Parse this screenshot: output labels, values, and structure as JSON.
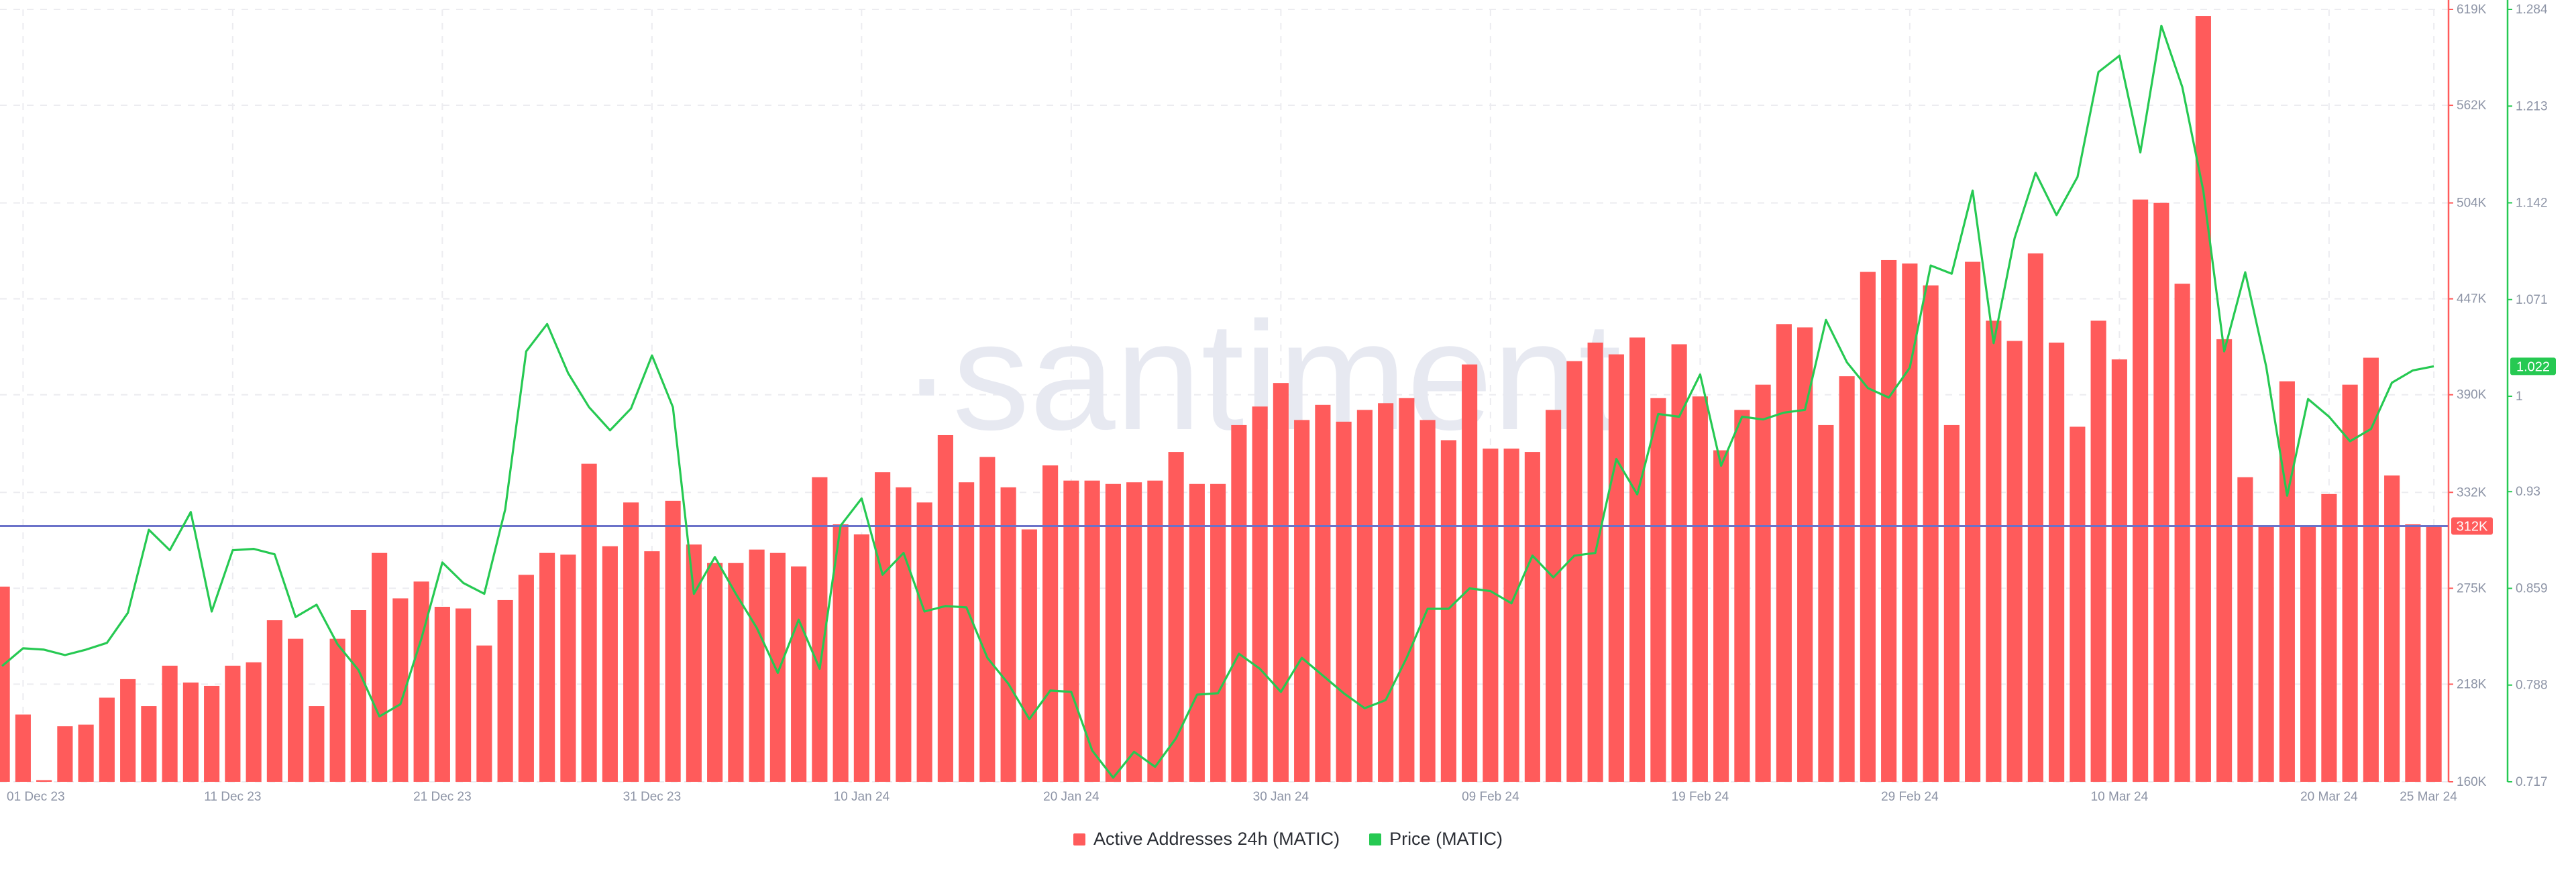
{
  "chart_data": {
    "type": "bar+line",
    "watermark": "·santiment",
    "x_dates": [
      "2023-11-30",
      "2023-12-01",
      "2023-12-02",
      "2023-12-03",
      "2023-12-04",
      "2023-12-05",
      "2023-12-06",
      "2023-12-07",
      "2023-12-08",
      "2023-12-09",
      "2023-12-10",
      "2023-12-11",
      "2023-12-12",
      "2023-12-13",
      "2023-12-14",
      "2023-12-15",
      "2023-12-16",
      "2023-12-17",
      "2023-12-18",
      "2023-12-19",
      "2023-12-20",
      "2023-12-21",
      "2023-12-22",
      "2023-12-23",
      "2023-12-24",
      "2023-12-25",
      "2023-12-26",
      "2023-12-27",
      "2023-12-28",
      "2023-12-29",
      "2023-12-30",
      "2023-12-31",
      "2024-01-01",
      "2024-01-02",
      "2024-01-03",
      "2024-01-04",
      "2024-01-05",
      "2024-01-06",
      "2024-01-07",
      "2024-01-08",
      "2024-01-09",
      "2024-01-10",
      "2024-01-11",
      "2024-01-12",
      "2024-01-13",
      "2024-01-14",
      "2024-01-15",
      "2024-01-16",
      "2024-01-17",
      "2024-01-18",
      "2024-01-19",
      "2024-01-20",
      "2024-01-21",
      "2024-01-22",
      "2024-01-23",
      "2024-01-24",
      "2024-01-25",
      "2024-01-26",
      "2024-01-27",
      "2024-01-28",
      "2024-01-29",
      "2024-01-30",
      "2024-01-31",
      "2024-02-01",
      "2024-02-02",
      "2024-02-03",
      "2024-02-04",
      "2024-02-05",
      "2024-02-06",
      "2024-02-07",
      "2024-02-08",
      "2024-02-09",
      "2024-02-10",
      "2024-02-11",
      "2024-02-12",
      "2024-02-13",
      "2024-02-14",
      "2024-02-15",
      "2024-02-16",
      "2024-02-17",
      "2024-02-18",
      "2024-02-19",
      "2024-02-20",
      "2024-02-21",
      "2024-02-22",
      "2024-02-23",
      "2024-02-24",
      "2024-02-25",
      "2024-02-26",
      "2024-02-27",
      "2024-02-28",
      "2024-02-29",
      "2024-03-01",
      "2024-03-02",
      "2024-03-03",
      "2024-03-04",
      "2024-03-05",
      "2024-03-06",
      "2024-03-07",
      "2024-03-08",
      "2024-03-09",
      "2024-03-10",
      "2024-03-11",
      "2024-03-12",
      "2024-03-13",
      "2024-03-14",
      "2024-03-15",
      "2024-03-16",
      "2024-03-17",
      "2024-03-18",
      "2024-03-19",
      "2024-03-20",
      "2024-03-21",
      "2024-03-22",
      "2024-03-23",
      "2024-03-24",
      "2024-03-25"
    ],
    "x_tick_labels": [
      {
        "date": "2023-12-01",
        "label": "01 Dec 23"
      },
      {
        "date": "2023-12-11",
        "label": "11 Dec 23"
      },
      {
        "date": "2023-12-21",
        "label": "21 Dec 23"
      },
      {
        "date": "2023-12-31",
        "label": "31 Dec 23"
      },
      {
        "date": "2024-01-10",
        "label": "10 Jan 24"
      },
      {
        "date": "2024-01-20",
        "label": "20 Jan 24"
      },
      {
        "date": "2024-01-30",
        "label": "30 Jan 24"
      },
      {
        "date": "2024-02-09",
        "label": "09 Feb 24"
      },
      {
        "date": "2024-02-19",
        "label": "19 Feb 24"
      },
      {
        "date": "2024-02-29",
        "label": "29 Feb 24"
      },
      {
        "date": "2024-03-10",
        "label": "10 Mar 24"
      },
      {
        "date": "2024-03-20",
        "label": "20 Mar 24"
      },
      {
        "date": "2024-03-25",
        "label": "25 Mar 24"
      }
    ],
    "series": [
      {
        "name": "Active Addresses 24h (MATIC)",
        "type": "bar",
        "color": "#ff5b5b",
        "axis": "left",
        "values": [
          276000,
          200000,
          161000,
          193000,
          194000,
          210000,
          221000,
          205000,
          229000,
          219000,
          217000,
          229000,
          231000,
          256000,
          245000,
          205000,
          245000,
          262000,
          296000,
          269000,
          279000,
          264000,
          263000,
          241000,
          268000,
          283000,
          296000,
          295000,
          349000,
          300000,
          326000,
          297000,
          327000,
          301000,
          290000,
          290000,
          298000,
          296000,
          288000,
          341000,
          313000,
          307000,
          344000,
          335000,
          326000,
          366000,
          338000,
          353000,
          335000,
          310000,
          348000,
          339000,
          339000,
          337000,
          338000,
          339000,
          356000,
          337000,
          337000,
          372000,
          383000,
          397000,
          375000,
          384000,
          374000,
          381000,
          385000,
          388000,
          375000,
          363000,
          408000,
          358000,
          358000,
          356000,
          381000,
          410000,
          421000,
          414000,
          424000,
          388000,
          420000,
          389000,
          357000,
          381000,
          396000,
          432000,
          430000,
          372000,
          401000,
          463000,
          470000,
          468000,
          455000,
          372000,
          469000,
          434000,
          422000,
          474000,
          421000,
          371000,
          434000,
          411000,
          506000,
          504000,
          456000,
          615000,
          423000,
          341000,
          312000,
          398000,
          312000,
          331000,
          396000,
          412000,
          342000,
          313000,
          312000
        ]
      },
      {
        "name": "Price (MATIC)",
        "type": "line",
        "color": "#26c952",
        "axis": "right",
        "values": [
          0.802,
          0.815,
          0.814,
          0.81,
          0.814,
          0.819,
          0.841,
          0.902,
          0.887,
          0.915,
          0.842,
          0.887,
          0.888,
          0.884,
          0.838,
          0.847,
          0.818,
          0.799,
          0.765,
          0.774,
          0.822,
          0.878,
          0.863,
          0.855,
          0.917,
          1.033,
          1.053,
          1.017,
          0.992,
          0.975,
          0.991,
          1.03,
          0.992,
          0.855,
          0.882,
          0.855,
          0.83,
          0.797,
          0.836,
          0.8,
          0.905,
          0.925,
          0.869,
          0.885,
          0.842,
          0.846,
          0.845,
          0.808,
          0.789,
          0.763,
          0.784,
          0.783,
          0.74,
          0.72,
          0.739,
          0.728,
          0.749,
          0.781,
          0.782,
          0.811,
          0.8,
          0.783,
          0.808,
          0.795,
          0.782,
          0.771,
          0.777,
          0.808,
          0.844,
          0.844,
          0.859,
          0.857,
          0.848,
          0.883,
          0.867,
          0.883,
          0.885,
          0.954,
          0.928,
          0.987,
          0.985,
          1.016,
          0.949,
          0.985,
          0.983,
          0.988,
          0.99,
          1.056,
          1.025,
          1.006,
          0.999,
          1.021,
          1.096,
          1.09,
          1.151,
          1.039,
          1.116,
          1.164,
          1.133,
          1.161,
          1.238,
          1.25,
          1.179,
          1.272,
          1.227,
          1.151,
          1.033,
          1.091,
          1.022,
          0.927,
          0.998,
          0.985,
          0.967,
          0.976,
          1.01,
          1.019,
          1.022
        ]
      }
    ],
    "left_axis": {
      "min": 160000,
      "max": 619000,
      "ticks": [
        160000,
        218000,
        275000,
        332000,
        390000,
        447000,
        504000,
        562000,
        619000
      ],
      "tick_labels": [
        "160K",
        "218K",
        "275K",
        "332K",
        "390K",
        "447K",
        "504K",
        "562K",
        "619K"
      ],
      "color": "#ff5b5b"
    },
    "right_axis": {
      "min": 0.717,
      "max": 1.284,
      "ticks": [
        0.717,
        0.788,
        0.859,
        0.93,
        1,
        1.071,
        1.142,
        1.213,
        1.284
      ],
      "tick_labels": [
        "0.717",
        "0.788",
        "0.859",
        "0.93",
        "1",
        "1.071",
        "1.142",
        "1.213",
        "1.284"
      ],
      "color": "#26c952"
    },
    "last_value_labels": {
      "bar": "312K",
      "line": "1.022"
    },
    "reference_line": {
      "axis": "left",
      "value": 312000,
      "color": "#6b72c9"
    },
    "grid": true,
    "legend_position": "bottom-center"
  }
}
